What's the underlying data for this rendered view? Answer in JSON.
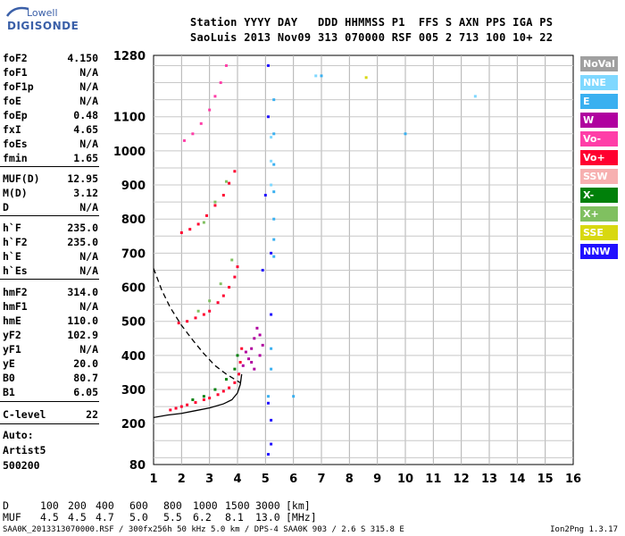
{
  "logo": {
    "top_text": "Lowell",
    "bottom_text": "DIGISONDE"
  },
  "header": {
    "line1": "Station YYYY DAY   DDD HHMMSS P1  FFS S AXN PPS IGA PS",
    "line2": "SaoLuis 2013 Nov09 313 070000 RSF 005 2 713 100 10+ 22"
  },
  "params": [
    {
      "key": "foF2",
      "value": "4.150"
    },
    {
      "key": "foF1",
      "value": "N/A"
    },
    {
      "key": "foF1p",
      "value": "N/A"
    },
    {
      "key": "foE",
      "value": "N/A"
    },
    {
      "key": "foEp",
      "value": "0.48"
    },
    {
      "key": "fxI",
      "value": "4.65"
    },
    {
      "key": "foEs",
      "value": "N/A"
    },
    {
      "key": "fmin",
      "value": "1.65"
    },
    {
      "key": "MUF(D)",
      "value": "12.95"
    },
    {
      "key": "M(D)",
      "value": "3.12"
    },
    {
      "key": "D",
      "value": "N/A"
    },
    {
      "key": "h`F",
      "value": "235.0"
    },
    {
      "key": "h`F2",
      "value": "235.0"
    },
    {
      "key": "h`E",
      "value": "N/A"
    },
    {
      "key": "h`Es",
      "value": "N/A"
    },
    {
      "key": "hmF2",
      "value": "314.0"
    },
    {
      "key": "hmF1",
      "value": "N/A"
    },
    {
      "key": "hmE",
      "value": "110.0"
    },
    {
      "key": "yF2",
      "value": "102.9"
    },
    {
      "key": "yF1",
      "value": "N/A"
    },
    {
      "key": "yE",
      "value": "20.0"
    },
    {
      "key": "B0",
      "value": "80.7"
    },
    {
      "key": "B1",
      "value": "6.05"
    },
    {
      "key": "C-level",
      "value": "22"
    }
  ],
  "footer_left": {
    "auto": "Auto:",
    "artist": "Artist5",
    "code": "500200"
  },
  "muf_table": {
    "d_label": "D",
    "d_values": [
      "100",
      "200",
      "400",
      "600",
      "800",
      "1000",
      "1500",
      "3000"
    ],
    "d_unit": "[km]",
    "muf_label": "MUF",
    "muf_values": [
      "4.5",
      "4.5",
      "4.7",
      "5.0",
      "5.5",
      "6.2",
      "8.1",
      "13.0"
    ],
    "muf_unit": "[MHz]"
  },
  "bottom_info": "SAA0K_2013313070000.RSF / 300fx256h 50 kHz 5.0 km / DPS-4 SAA0K 903 / 2.6 S 315.8 E",
  "version": "Ion2Png 1.3.17",
  "legend": [
    {
      "label": "NoVal",
      "color": "#a0a0a0"
    },
    {
      "label": "NNE",
      "color": "#7fd8ff"
    },
    {
      "label": "E",
      "color": "#3ab0f0"
    },
    {
      "label": "W",
      "color": "#b0009f"
    },
    {
      "label": "Vo-",
      "color": "#ff3ea8"
    },
    {
      "label": "Vo+",
      "color": "#ff0030"
    },
    {
      "label": "SSW",
      "color": "#f7b0b0"
    },
    {
      "label": "X-",
      "color": "#00800a"
    },
    {
      "label": "X+",
      "color": "#80c060"
    },
    {
      "label": "SSE",
      "color": "#d8d810"
    },
    {
      "label": "NNW",
      "color": "#2010ff"
    }
  ],
  "chart_data": {
    "type": "scatter",
    "xlabel": "",
    "ylabel": "",
    "xlim": [
      1,
      16
    ],
    "ylim": [
      80,
      1280
    ],
    "x_ticks": [
      1,
      2,
      3,
      4,
      5,
      6,
      7,
      8,
      9,
      10,
      11,
      12,
      13,
      14,
      15,
      16
    ],
    "y_ticks": [
      80,
      200,
      300,
      400,
      500,
      600,
      700,
      800,
      900,
      1000,
      1100,
      1280
    ],
    "grid": true,
    "series": [
      {
        "color": "#ff0030",
        "points": [
          [
            1.6,
            240
          ],
          [
            1.8,
            245
          ],
          [
            2.0,
            250
          ],
          [
            2.2,
            255
          ],
          [
            2.5,
            262
          ],
          [
            2.8,
            270
          ],
          [
            3.0,
            275
          ],
          [
            3.3,
            285
          ],
          [
            3.5,
            295
          ],
          [
            3.7,
            305
          ],
          [
            3.9,
            320
          ],
          [
            4.05,
            345
          ],
          [
            4.1,
            380
          ],
          [
            4.15,
            420
          ]
        ]
      },
      {
        "color": "#ff0030",
        "points": [
          [
            1.9,
            495
          ],
          [
            2.2,
            500
          ],
          [
            2.5,
            510
          ],
          [
            2.8,
            520
          ],
          [
            3.0,
            530
          ],
          [
            3.3,
            555
          ],
          [
            3.5,
            575
          ],
          [
            3.7,
            600
          ],
          [
            3.9,
            630
          ],
          [
            4.0,
            660
          ]
        ]
      },
      {
        "color": "#ff0030",
        "points": [
          [
            2.0,
            760
          ],
          [
            2.3,
            770
          ],
          [
            2.6,
            785
          ],
          [
            2.9,
            810
          ],
          [
            3.2,
            840
          ],
          [
            3.5,
            870
          ],
          [
            3.7,
            905
          ],
          [
            3.9,
            940
          ]
        ]
      },
      {
        "color": "#ff3ea8",
        "points": [
          [
            2.1,
            1030
          ],
          [
            2.4,
            1050
          ],
          [
            2.7,
            1080
          ],
          [
            3.0,
            1120
          ],
          [
            3.2,
            1160
          ],
          [
            3.4,
            1200
          ],
          [
            3.6,
            1250
          ]
        ]
      },
      {
        "color": "#b0009f",
        "points": [
          [
            4.2,
            370
          ],
          [
            4.4,
            390
          ],
          [
            4.5,
            420
          ],
          [
            4.6,
            450
          ],
          [
            4.7,
            480
          ],
          [
            4.8,
            400
          ],
          [
            4.9,
            430
          ],
          [
            4.5,
            380
          ],
          [
            4.3,
            410
          ],
          [
            4.6,
            360
          ],
          [
            4.8,
            460
          ]
        ]
      },
      {
        "color": "#00800a",
        "points": [
          [
            2.4,
            270
          ],
          [
            2.8,
            280
          ],
          [
            3.2,
            300
          ],
          [
            3.6,
            330
          ],
          [
            3.9,
            360
          ],
          [
            4.0,
            400
          ]
        ]
      },
      {
        "color": "#80c060",
        "points": [
          [
            2.6,
            530
          ],
          [
            3.0,
            560
          ],
          [
            3.4,
            610
          ],
          [
            3.8,
            680
          ],
          [
            2.8,
            790
          ],
          [
            3.2,
            850
          ],
          [
            3.6,
            910
          ]
        ]
      },
      {
        "color": "#2010ff",
        "points": [
          [
            5.1,
            1250
          ],
          [
            5.1,
            1100
          ],
          [
            5.0,
            870
          ],
          [
            5.2,
            700
          ],
          [
            4.9,
            650
          ],
          [
            5.2,
            520
          ],
          [
            5.1,
            260
          ],
          [
            5.2,
            210
          ],
          [
            5.2,
            140
          ],
          [
            5.1,
            110
          ]
        ]
      },
      {
        "color": "#3ab0f0",
        "points": [
          [
            5.3,
            1150
          ],
          [
            5.3,
            1050
          ],
          [
            5.3,
            960
          ],
          [
            5.3,
            880
          ],
          [
            5.3,
            800
          ],
          [
            5.3,
            740
          ],
          [
            5.3,
            690
          ],
          [
            5.2,
            420
          ],
          [
            5.2,
            360
          ],
          [
            6.0,
            280
          ],
          [
            5.1,
            280
          ],
          [
            7.0,
            1220
          ],
          [
            10.0,
            1050
          ]
        ]
      },
      {
        "color": "#7fd8ff",
        "points": [
          [
            5.2,
            1040
          ],
          [
            5.2,
            970
          ],
          [
            5.2,
            900
          ],
          [
            6.8,
            1220
          ],
          [
            12.5,
            1160
          ]
        ]
      },
      {
        "color": "#d8d810",
        "points": [
          [
            8.6,
            1215
          ]
        ]
      }
    ],
    "profile_curve": [
      [
        1.0,
        218
      ],
      [
        1.5,
        225
      ],
      [
        2.0,
        230
      ],
      [
        2.5,
        238
      ],
      [
        3.0,
        246
      ],
      [
        3.5,
        258
      ],
      [
        3.8,
        270
      ],
      [
        4.0,
        290
      ],
      [
        4.1,
        315
      ],
      [
        4.15,
        345
      ]
    ],
    "dashed_curve": [
      [
        1.0,
        655
      ],
      [
        1.3,
        590
      ],
      [
        1.6,
        540
      ],
      [
        2.0,
        488
      ],
      [
        2.4,
        445
      ],
      [
        2.8,
        405
      ],
      [
        3.2,
        370
      ],
      [
        3.6,
        345
      ],
      [
        3.9,
        330
      ],
      [
        4.1,
        320
      ]
    ]
  }
}
